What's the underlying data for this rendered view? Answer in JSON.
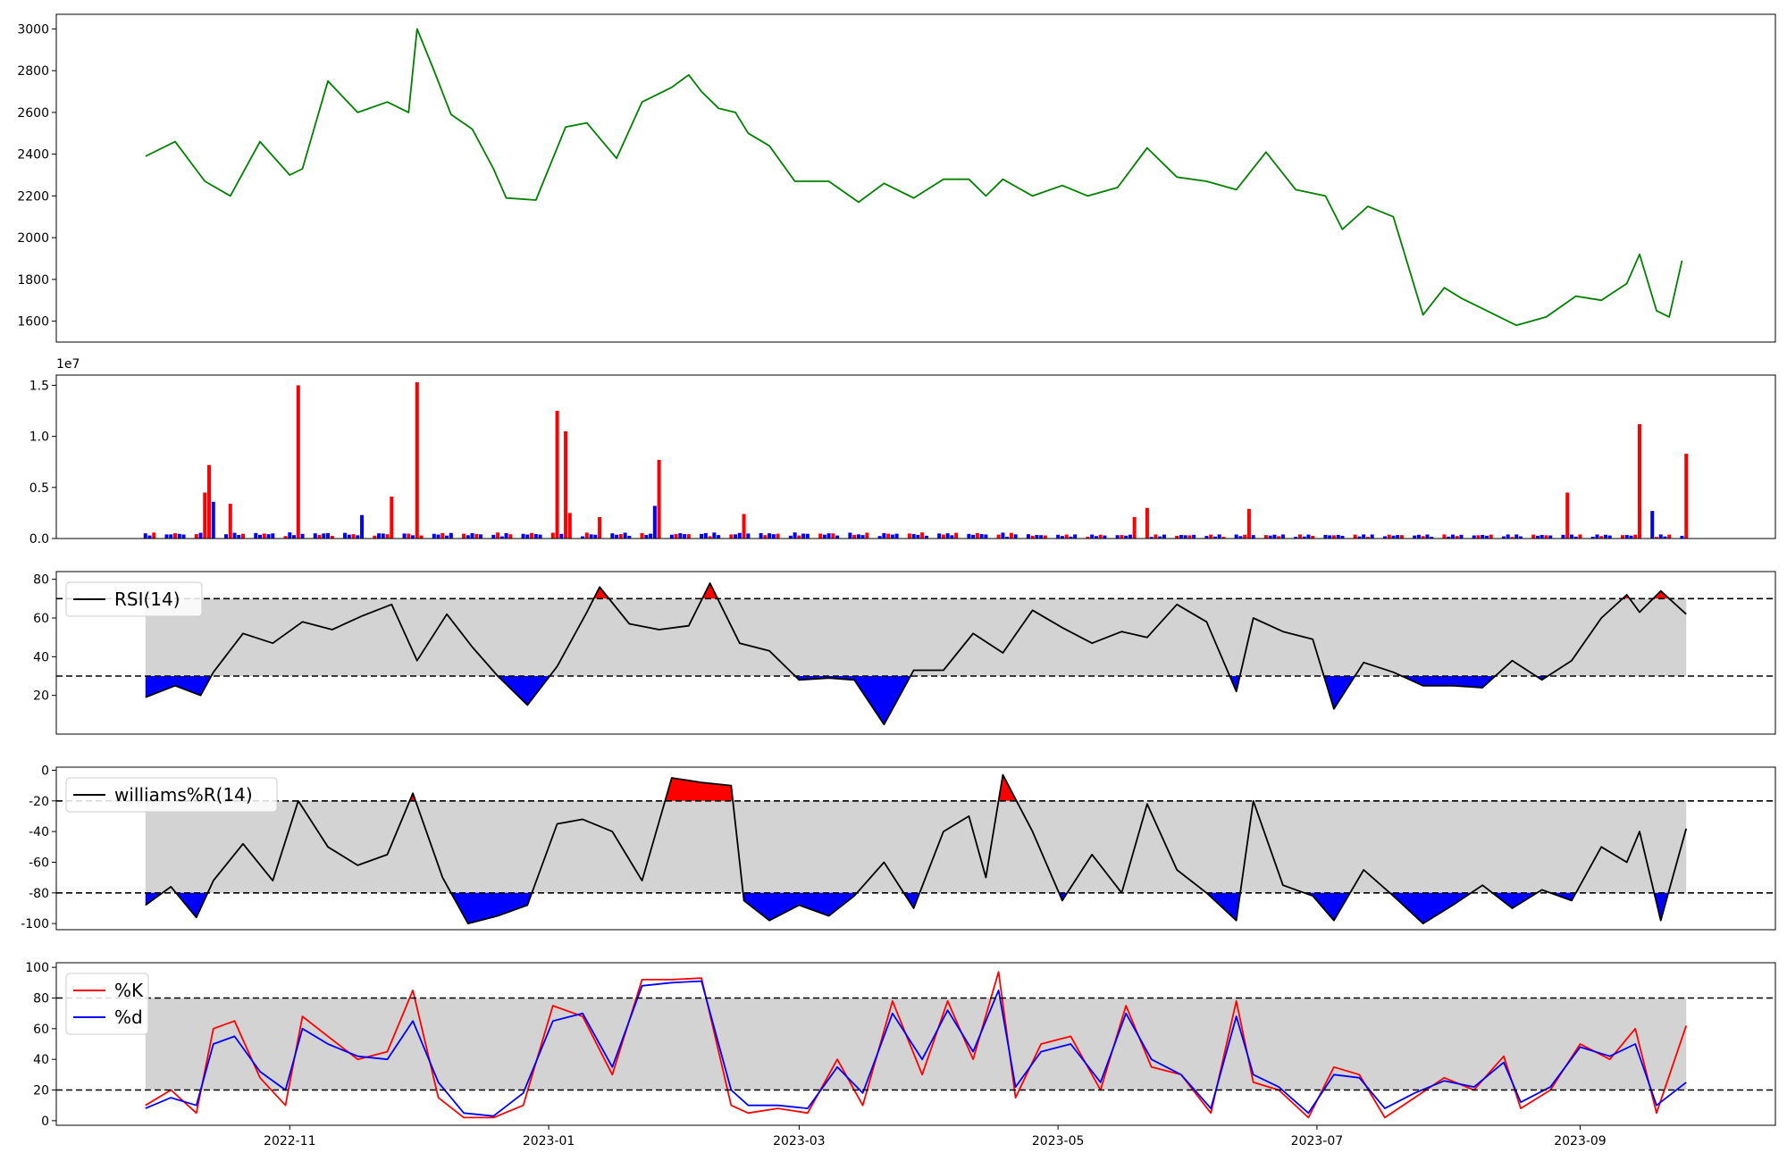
{
  "chart_data": [
    {
      "panel": "price",
      "type": "line",
      "color": "#008000",
      "yticks": [
        1600,
        1800,
        2000,
        2200,
        2400,
        2600,
        2800,
        3000
      ],
      "ylim": [
        1500,
        3070
      ],
      "x_dates": [
        "2022-09-28",
        "2022-10-05",
        "2022-10-12",
        "2022-10-18",
        "2022-10-25",
        "2022-11-01",
        "2022-11-04",
        "2022-11-10",
        "2022-11-17",
        "2022-11-24",
        "2022-11-29",
        "2022-12-01",
        "2022-12-05",
        "2022-12-09",
        "2022-12-14",
        "2022-12-19",
        "2022-12-22",
        "2022-12-29",
        "2023-01-05",
        "2023-01-10",
        "2023-01-17",
        "2023-01-23",
        "2023-01-30",
        "2023-02-03",
        "2023-02-06",
        "2023-02-10",
        "2023-02-14",
        "2023-02-17",
        "2023-02-22",
        "2023-02-28",
        "2023-03-08",
        "2023-03-15",
        "2023-03-21",
        "2023-03-28",
        "2023-04-04",
        "2023-04-10",
        "2023-04-14",
        "2023-04-18",
        "2023-04-25",
        "2023-05-02",
        "2023-05-08",
        "2023-05-15",
        "2023-05-22",
        "2023-05-29",
        "2023-06-05",
        "2023-06-12",
        "2023-06-19",
        "2023-06-26",
        "2023-07-03",
        "2023-07-07",
        "2023-07-13",
        "2023-07-19",
        "2023-07-26",
        "2023-07-31",
        "2023-08-04",
        "2023-08-10",
        "2023-08-17",
        "2023-08-24",
        "2023-08-31",
        "2023-09-06",
        "2023-09-12",
        "2023-09-15",
        "2023-09-19",
        "2023-09-22",
        "2023-09-25"
      ],
      "values": [
        2390,
        2460,
        2270,
        2200,
        2460,
        2300,
        2330,
        2750,
        2600,
        2650,
        2600,
        3000,
        2800,
        2590,
        2520,
        2330,
        2190,
        2180,
        2530,
        2550,
        2380,
        2650,
        2720,
        2780,
        2700,
        2620,
        2600,
        2500,
        2440,
        2270,
        2270,
        2170,
        2260,
        2190,
        2280,
        2280,
        2200,
        2280,
        2200,
        2250,
        2200,
        2240,
        2430,
        2290,
        2270,
        2230,
        2410,
        2230,
        2200,
        2040,
        2150,
        2100,
        1630,
        1760,
        1710,
        1650,
        1580,
        1620,
        1720,
        1700,
        1780,
        1920,
        1650,
        1620,
        1890
      ]
    },
    {
      "panel": "volume",
      "type": "bar",
      "offset_label": "1e7",
      "yticks": [
        0.0,
        0.5,
        1.0,
        1.5
      ],
      "ytick_labels": [
        "0.0",
        "0.5",
        "1.0",
        "1.5"
      ],
      "ylim": [
        0,
        1.6
      ],
      "up_color": "#0000ff",
      "down_color": "#ff0000",
      "tall_bars": [
        {
          "x": "2022-10-12",
          "value": 0.45,
          "direction": "down"
        },
        {
          "x": "2022-10-13",
          "value": 0.72,
          "direction": "down"
        },
        {
          "x": "2022-10-14",
          "value": 0.36,
          "direction": "up"
        },
        {
          "x": "2022-10-18",
          "value": 0.34,
          "direction": "down"
        },
        {
          "x": "2022-11-03",
          "value": 1.5,
          "direction": "down"
        },
        {
          "x": "2022-11-18",
          "value": 0.23,
          "direction": "up"
        },
        {
          "x": "2022-11-25",
          "value": 0.41,
          "direction": "down"
        },
        {
          "x": "2022-12-01",
          "value": 1.53,
          "direction": "down"
        },
        {
          "x": "2023-01-03",
          "value": 1.25,
          "direction": "down"
        },
        {
          "x": "2023-01-05",
          "value": 1.05,
          "direction": "down"
        },
        {
          "x": "2023-01-06",
          "value": 0.25,
          "direction": "down"
        },
        {
          "x": "2023-01-13",
          "value": 0.21,
          "direction": "down"
        },
        {
          "x": "2023-01-26",
          "value": 0.32,
          "direction": "up"
        },
        {
          "x": "2023-01-27",
          "value": 0.77,
          "direction": "down"
        },
        {
          "x": "2023-02-16",
          "value": 0.24,
          "direction": "down"
        },
        {
          "x": "2023-05-19",
          "value": 0.21,
          "direction": "down"
        },
        {
          "x": "2023-05-22",
          "value": 0.3,
          "direction": "down"
        },
        {
          "x": "2023-06-15",
          "value": 0.29,
          "direction": "down"
        },
        {
          "x": "2023-08-29",
          "value": 0.45,
          "direction": "down"
        },
        {
          "x": "2023-09-15",
          "value": 1.12,
          "direction": "down"
        },
        {
          "x": "2023-09-18",
          "value": 0.27,
          "direction": "up"
        },
        {
          "x": "2023-09-26",
          "value": 0.83,
          "direction": "down"
        }
      ]
    },
    {
      "panel": "rsi",
      "type": "line",
      "legend": "RSI(14)",
      "color": "#000000",
      "yticks": [
        20,
        40,
        60,
        80
      ],
      "ylim": [
        0,
        84
      ],
      "upper_band": 70,
      "lower_band": 30,
      "x_dates": [
        "2022-09-28",
        "2022-10-05",
        "2022-10-11",
        "2022-10-14",
        "2022-10-21",
        "2022-10-28",
        "2022-11-04",
        "2022-11-11",
        "2022-11-18",
        "2022-11-25",
        "2022-12-01",
        "2022-12-08",
        "2022-12-14",
        "2022-12-20",
        "2022-12-27",
        "2023-01-03",
        "2023-01-10",
        "2023-01-13",
        "2023-01-20",
        "2023-01-27",
        "2023-02-03",
        "2023-02-08",
        "2023-02-15",
        "2023-02-22",
        "2023-03-01",
        "2023-03-08",
        "2023-03-14",
        "2023-03-21",
        "2023-03-28",
        "2023-04-04",
        "2023-04-11",
        "2023-04-18",
        "2023-04-25",
        "2023-05-02",
        "2023-05-09",
        "2023-05-16",
        "2023-05-22",
        "2023-05-29",
        "2023-06-05",
        "2023-06-12",
        "2023-06-16",
        "2023-06-23",
        "2023-06-30",
        "2023-07-05",
        "2023-07-12",
        "2023-07-19",
        "2023-07-26",
        "2023-08-02",
        "2023-08-09",
        "2023-08-16",
        "2023-08-23",
        "2023-08-30",
        "2023-09-06",
        "2023-09-12",
        "2023-09-15",
        "2023-09-20",
        "2023-09-26"
      ],
      "values": [
        19,
        25,
        20,
        32,
        52,
        47,
        58,
        54,
        61,
        67,
        38,
        62,
        45,
        30,
        15,
        35,
        63,
        76,
        57,
        54,
        56,
        78,
        47,
        43,
        28,
        29,
        28,
        5,
        33,
        33,
        52,
        42,
        64,
        55,
        47,
        53,
        50,
        67,
        58,
        22,
        60,
        53,
        49,
        13,
        37,
        32,
        25,
        25,
        24,
        38,
        28,
        38,
        60,
        72,
        63,
        74,
        62
      ]
    },
    {
      "panel": "williams",
      "type": "line",
      "legend": "williams%R(14)",
      "color": "#000000",
      "yticks": [
        -100,
        -80,
        -60,
        -40,
        -20,
        0
      ],
      "ylim": [
        -104,
        2
      ],
      "upper_band": -20,
      "lower_band": -80,
      "x_dates": [
        "2022-09-28",
        "2022-10-04",
        "2022-10-10",
        "2022-10-14",
        "2022-10-21",
        "2022-10-28",
        "2022-11-03",
        "2022-11-10",
        "2022-11-17",
        "2022-11-24",
        "2022-11-30",
        "2022-12-07",
        "2022-12-13",
        "2022-12-20",
        "2022-12-27",
        "2023-01-03",
        "2023-01-09",
        "2023-01-16",
        "2023-01-23",
        "2023-01-30",
        "2023-02-06",
        "2023-02-13",
        "2023-02-16",
        "2023-02-22",
        "2023-03-01",
        "2023-03-08",
        "2023-03-14",
        "2023-03-21",
        "2023-03-28",
        "2023-04-04",
        "2023-04-10",
        "2023-04-14",
        "2023-04-18",
        "2023-04-25",
        "2023-05-02",
        "2023-05-09",
        "2023-05-16",
        "2023-05-22",
        "2023-05-29",
        "2023-06-05",
        "2023-06-12",
        "2023-06-16",
        "2023-06-23",
        "2023-06-30",
        "2023-07-05",
        "2023-07-12",
        "2023-07-19",
        "2023-07-26",
        "2023-08-02",
        "2023-08-09",
        "2023-08-16",
        "2023-08-23",
        "2023-08-30",
        "2023-09-06",
        "2023-09-12",
        "2023-09-15",
        "2023-09-20",
        "2023-09-26"
      ],
      "values": [
        -88,
        -76,
        -96,
        -72,
        -48,
        -72,
        -20,
        -50,
        -62,
        -55,
        -15,
        -70,
        -100,
        -95,
        -88,
        -35,
        -32,
        -40,
        -72,
        -5,
        -8,
        -10,
        -85,
        -98,
        -88,
        -95,
        -82,
        -60,
        -90,
        -40,
        -30,
        -70,
        -3,
        -40,
        -85,
        -55,
        -80,
        -22,
        -65,
        -80,
        -98,
        -20,
        -75,
        -82,
        -98,
        -65,
        -82,
        -100,
        -88,
        -75,
        -90,
        -78,
        -85,
        -50,
        -60,
        -40,
        -98,
        -38
      ]
    },
    {
      "panel": "stochastic",
      "type": "line",
      "yticks": [
        0,
        20,
        40,
        60,
        80,
        100
      ],
      "ylim": [
        -3,
        103
      ],
      "upper_band": 80,
      "lower_band": 20,
      "x_dates": [
        "2022-09-28",
        "2022-10-04",
        "2022-10-10",
        "2022-10-14",
        "2022-10-19",
        "2022-10-25",
        "2022-10-31",
        "2022-11-04",
        "2022-11-10",
        "2022-11-17",
        "2022-11-24",
        "2022-11-30",
        "2022-12-06",
        "2022-12-12",
        "2022-12-19",
        "2022-12-26",
        "2023-01-02",
        "2023-01-09",
        "2023-01-16",
        "2023-01-23",
        "2023-01-30",
        "2023-02-06",
        "2023-02-13",
        "2023-02-17",
        "2023-02-24",
        "2023-03-03",
        "2023-03-10",
        "2023-03-16",
        "2023-03-23",
        "2023-03-30",
        "2023-04-05",
        "2023-04-11",
        "2023-04-17",
        "2023-04-21",
        "2023-04-27",
        "2023-05-04",
        "2023-05-11",
        "2023-05-17",
        "2023-05-23",
        "2023-05-30",
        "2023-06-06",
        "2023-06-12",
        "2023-06-16",
        "2023-06-22",
        "2023-06-29",
        "2023-07-05",
        "2023-07-11",
        "2023-07-17",
        "2023-07-24",
        "2023-07-31",
        "2023-08-07",
        "2023-08-14",
        "2023-08-18",
        "2023-08-25",
        "2023-09-01",
        "2023-09-08",
        "2023-09-14",
        "2023-09-19",
        "2023-09-26"
      ],
      "series": [
        {
          "name": "%K",
          "color": "#ff0000",
          "values": [
            10,
            20,
            5,
            60,
            65,
            28,
            10,
            68,
            55,
            40,
            45,
            85,
            15,
            2,
            2,
            10,
            75,
            68,
            30,
            92,
            92,
            93,
            10,
            5,
            8,
            5,
            40,
            10,
            78,
            30,
            78,
            40,
            97,
            15,
            50,
            55,
            20,
            75,
            35,
            30,
            5,
            78,
            25,
            20,
            2,
            35,
            30,
            2,
            15,
            28,
            20,
            42,
            8,
            20,
            50,
            40,
            60,
            5,
            62
          ]
        },
        {
          "name": "%d",
          "color": "#0000ff",
          "values": [
            8,
            15,
            10,
            50,
            55,
            32,
            20,
            60,
            50,
            42,
            40,
            65,
            25,
            5,
            3,
            18,
            65,
            70,
            35,
            88,
            90,
            91,
            20,
            10,
            10,
            8,
            35,
            18,
            70,
            40,
            72,
            45,
            85,
            22,
            45,
            50,
            25,
            70,
            40,
            30,
            8,
            68,
            30,
            22,
            5,
            30,
            28,
            8,
            18,
            26,
            22,
            38,
            12,
            22,
            48,
            42,
            50,
            10,
            25
          ]
        }
      ]
    }
  ],
  "x_axis": {
    "tick_labels": [
      "2022-11",
      "2023-01",
      "2023-03",
      "2023-05",
      "2023-07",
      "2023-09"
    ],
    "tick_dates": [
      "2022-11-01",
      "2023-01-01",
      "2023-03-01",
      "2023-05-01",
      "2023-07-01",
      "2023-09-01"
    ]
  }
}
